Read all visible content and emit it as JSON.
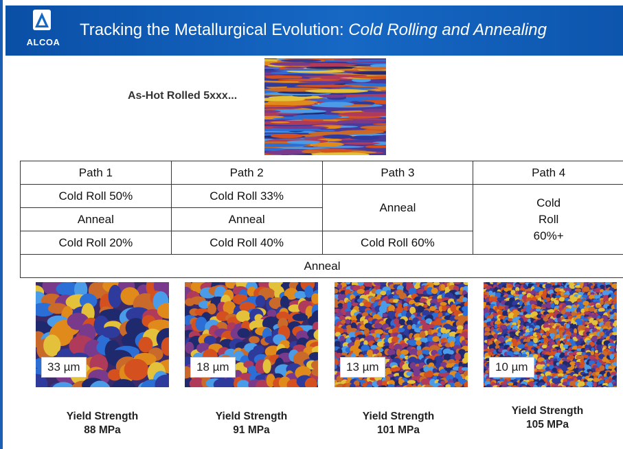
{
  "header": {
    "logo_text": "ALCOA",
    "title_plain": "Tracking the Metallurgical Evolution: ",
    "title_italic": "Cold Rolling and Annealing",
    "bg_color": "#1668c4"
  },
  "hot_rolled": {
    "label": "As-Hot Rolled 5xxx..."
  },
  "table": {
    "headers": [
      "Path 1",
      "Path 2",
      "Path 3",
      "Path 4"
    ],
    "path1": [
      "Cold Roll 50%",
      "Anneal",
      "Cold Roll 20%"
    ],
    "path2": [
      "Cold Roll 33%",
      "Anneal",
      "Cold Roll 40%"
    ],
    "path3": [
      "Anneal",
      "Cold Roll 60%"
    ],
    "path4": [
      "Cold",
      "Roll",
      "60%+"
    ],
    "final": "Anneal"
  },
  "results": [
    {
      "scale": "33 µm",
      "label": "Yield Strength",
      "value": "88 MPa"
    },
    {
      "scale": "18 µm",
      "label": "Yield Strength",
      "value": "91 MPa"
    },
    {
      "scale": "13 µm",
      "label": "Yield Strength",
      "value": "101 MPa"
    },
    {
      "scale": "10 µm",
      "label": "Yield Strength",
      "value": "105 MPa"
    }
  ]
}
